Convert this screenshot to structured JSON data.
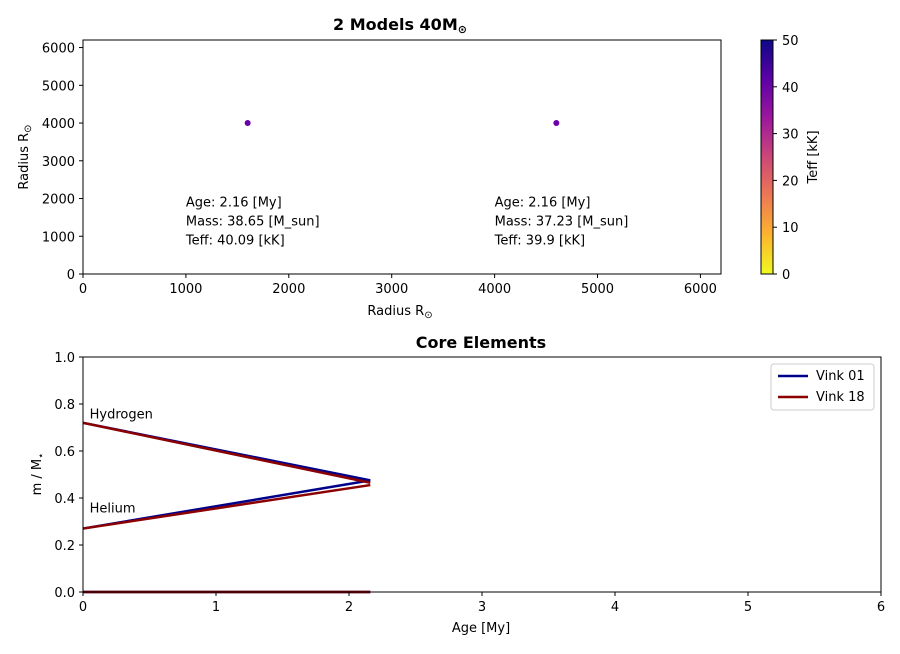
{
  "chart_data": [
    {
      "type": "scatter",
      "title": "2 Models 40M",
      "title_sub": "⊙",
      "xlabel": "Radius R",
      "xlabel_sub": "⊙",
      "ylabel": "Radius R",
      "ylabel_sub": "⊙",
      "xlim": [
        0,
        6200
      ],
      "ylim": [
        0,
        6200
      ],
      "xticks": [
        0,
        1000,
        2000,
        3000,
        4000,
        5000,
        6000
      ],
      "yticks": [
        0,
        1000,
        2000,
        3000,
        4000,
        5000,
        6000
      ],
      "points": [
        {
          "x": 1600,
          "y": 4000,
          "teff": 40.09,
          "color": "#6a00a8"
        },
        {
          "x": 4600,
          "y": 4000,
          "teff": 39.9,
          "color": "#6a00a8"
        }
      ],
      "annotations": [
        {
          "x": 1000,
          "y": 1600,
          "lines": [
            "Age: 2.16 [My]",
            "Mass: 38.65 [M_sun]",
            "Teff: 40.09 [kK]"
          ]
        },
        {
          "x": 4000,
          "y": 1600,
          "lines": [
            "Age: 2.16 [My]",
            "Mass: 37.23 [M_sun]",
            "Teff: 39.9 [kK]"
          ]
        }
      ],
      "colorbar": {
        "label": "Teff [kK]",
        "range": [
          0,
          50
        ],
        "ticks": [
          0,
          10,
          20,
          30,
          40,
          50
        ],
        "colormap": [
          "#f0f921",
          "#fdb42f",
          "#ed7953",
          "#cc4778",
          "#9c179e",
          "#5c01a6",
          "#0d0887"
        ]
      }
    },
    {
      "type": "line",
      "title": "Core Elements",
      "xlabel": "Age [My]",
      "ylabel": "m / M",
      "ylabel_sub": "⋆",
      "xlim": [
        0,
        6
      ],
      "ylim": [
        0,
        1.0
      ],
      "xticks": [
        0,
        1,
        2,
        3,
        4,
        5,
        6
      ],
      "yticks": [
        0.0,
        0.2,
        0.4,
        0.6,
        0.8,
        1.0
      ],
      "series": [
        {
          "name": "Vink 01",
          "color": "#00008b",
          "lines": [
            [
              [
                0,
                0.72
              ],
              [
                2.16,
                0.475
              ]
            ],
            [
              [
                0,
                0.27
              ],
              [
                2.16,
                0.475
              ]
            ],
            [
              [
                0,
                0.0
              ],
              [
                2.16,
                0.0
              ]
            ]
          ]
        },
        {
          "name": "Vink 18",
          "color": "#8b0000",
          "lines": [
            [
              [
                0,
                0.72
              ],
              [
                2.16,
                0.465
              ]
            ],
            [
              [
                0,
                0.27
              ],
              [
                2.16,
                0.455
              ]
            ],
            [
              [
                0,
                0.0
              ],
              [
                2.16,
                0.0
              ]
            ]
          ]
        }
      ],
      "annotations": [
        {
          "text": "Hydrogen",
          "x": 0.05,
          "y": 0.76
        },
        {
          "text": "Helium",
          "x": 0.05,
          "y": 0.36
        }
      ],
      "legend_loc": "top-right"
    }
  ]
}
